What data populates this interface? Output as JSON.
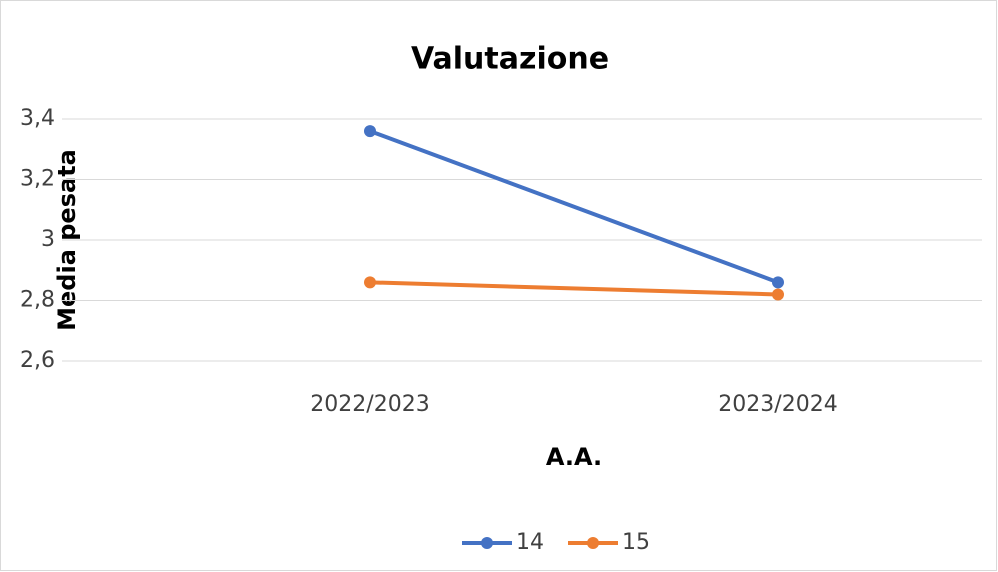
{
  "chart_data": {
    "type": "line",
    "title": "Valutazione",
    "x_label": "A.A.",
    "y_label": "Media pesata",
    "categories": [
      "2022/2023",
      "2023/2024"
    ],
    "series": [
      {
        "name": "14",
        "color": "#4472c4",
        "values": [
          3.36,
          2.86
        ]
      },
      {
        "name": "15",
        "color": "#ed7d31",
        "values": [
          2.86,
          2.82
        ]
      }
    ],
    "ylim": [
      2.6,
      3.4
    ],
    "yticks": [
      {
        "value": 2.6,
        "label": "2,6"
      },
      {
        "value": 2.8,
        "label": "2,8"
      },
      3,
      {
        "value": 3.2,
        "label": "3,2"
      },
      {
        "value": 3.4,
        "label": "3,4"
      }
    ],
    "grid": true,
    "legend": "bottom"
  }
}
